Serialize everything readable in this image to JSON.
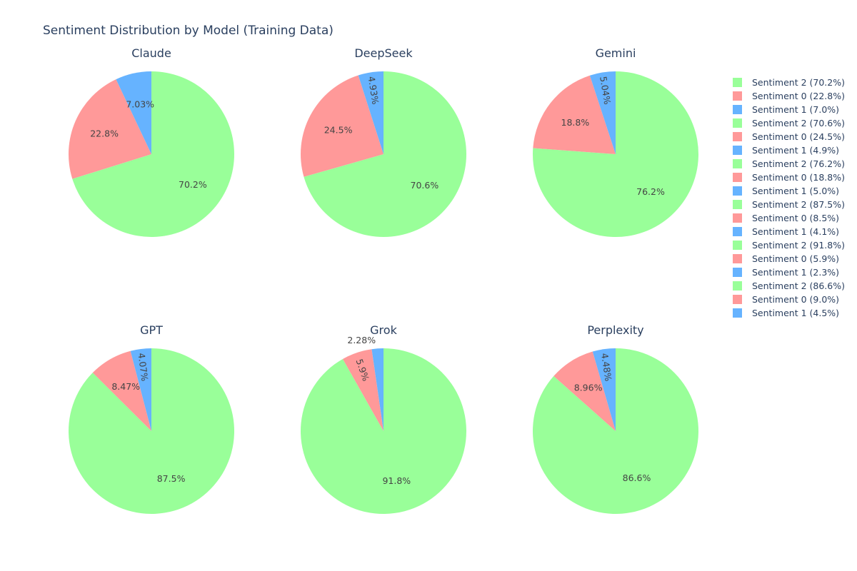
{
  "chart_data": {
    "type": "pie",
    "title": "Sentiment Distribution by Model (Training Data)",
    "colors": {
      "Sentiment 2": "#99ff99",
      "Sentiment 0": "#ff9999",
      "Sentiment 1": "#66b3ff"
    },
    "legend_placement": "right",
    "pies": [
      {
        "name": "Claude",
        "slices": [
          {
            "label": "Sentiment 2",
            "value": 70.2,
            "text": "70.2%",
            "legend": "Sentiment 2 (70.2%)"
          },
          {
            "label": "Sentiment 0",
            "value": 22.8,
            "text": "22.8%",
            "legend": "Sentiment 0 (22.8%)"
          },
          {
            "label": "Sentiment 1",
            "value": 7.03,
            "text": "7.03%",
            "legend": "Sentiment 1 (7.0%)"
          }
        ]
      },
      {
        "name": "DeepSeek",
        "slices": [
          {
            "label": "Sentiment 2",
            "value": 70.6,
            "text": "70.6%",
            "legend": "Sentiment 2 (70.6%)"
          },
          {
            "label": "Sentiment 0",
            "value": 24.5,
            "text": "24.5%",
            "legend": "Sentiment 0 (24.5%)"
          },
          {
            "label": "Sentiment 1",
            "value": 4.93,
            "text": "4.93%",
            "legend": "Sentiment 1 (4.9%)"
          }
        ]
      },
      {
        "name": "Gemini",
        "slices": [
          {
            "label": "Sentiment 2",
            "value": 76.2,
            "text": "76.2%",
            "legend": "Sentiment 2 (76.2%)"
          },
          {
            "label": "Sentiment 0",
            "value": 18.8,
            "text": "18.8%",
            "legend": "Sentiment 0 (18.8%)"
          },
          {
            "label": "Sentiment 1",
            "value": 5.04,
            "text": "5.04%",
            "legend": "Sentiment 1 (5.0%)"
          }
        ]
      },
      {
        "name": "GPT",
        "slices": [
          {
            "label": "Sentiment 2",
            "value": 87.5,
            "text": "87.5%",
            "legend": "Sentiment 2 (87.5%)"
          },
          {
            "label": "Sentiment 0",
            "value": 8.47,
            "text": "8.47%",
            "legend": "Sentiment 0 (8.5%)"
          },
          {
            "label": "Sentiment 1",
            "value": 4.07,
            "text": "4.07%",
            "legend": "Sentiment 1 (4.1%)"
          }
        ]
      },
      {
        "name": "Grok",
        "slices": [
          {
            "label": "Sentiment 2",
            "value": 91.8,
            "text": "91.8%",
            "legend": "Sentiment 2 (91.8%)"
          },
          {
            "label": "Sentiment 0",
            "value": 5.9,
            "text": "5.9%",
            "legend": "Sentiment 0 (5.9%)"
          },
          {
            "label": "Sentiment 1",
            "value": 2.28,
            "text": "2.28%",
            "legend": "Sentiment 1 (2.3%)"
          }
        ]
      },
      {
        "name": "Perplexity",
        "slices": [
          {
            "label": "Sentiment 2",
            "value": 86.6,
            "text": "86.6%",
            "legend": "Sentiment 2 (86.6%)"
          },
          {
            "label": "Sentiment 0",
            "value": 8.96,
            "text": "8.96%",
            "legend": "Sentiment 0 (9.0%)"
          },
          {
            "label": "Sentiment 1",
            "value": 4.48,
            "text": "4.48%",
            "legend": "Sentiment 1 (4.5%)"
          }
        ]
      }
    ]
  }
}
